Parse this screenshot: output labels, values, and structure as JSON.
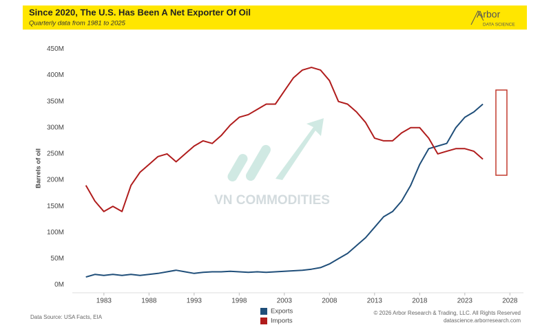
{
  "chart_data": {
    "type": "line",
    "title": "Since 2020, The U.S. Has Been A Net Exporter Of Oil",
    "subtitle": "Quarterly data from 1981 to 2025",
    "logo": "Arbor",
    "logo_sub": "DATA SCIENCE",
    "y_label": "Barrels of oil",
    "source": "Data Source: USA Facts, EIA",
    "copyright": "© 2026 Arbor Research & Trading, LLC. All Rights Reserved",
    "website": "datascience.arborresearch.com",
    "watermark": "VN COMMODITIES",
    "x": [
      1981,
      1982,
      1983,
      1984,
      1985,
      1986,
      1987,
      1988,
      1989,
      1990,
      1991,
      1992,
      1993,
      1994,
      1995,
      1996,
      1997,
      1998,
      1999,
      2000,
      2001,
      2002,
      2003,
      2004,
      2005,
      2006,
      2007,
      2008,
      2009,
      2010,
      2011,
      2012,
      2013,
      2014,
      2015,
      2016,
      2017,
      2018,
      2019,
      2020,
      2021,
      2022,
      2023,
      2024,
      2025
    ],
    "series": [
      {
        "name": "Exports",
        "color": "#1f4e79",
        "values": [
          15,
          20,
          18,
          20,
          18,
          20,
          18,
          20,
          22,
          25,
          28,
          25,
          22,
          24,
          25,
          25,
          26,
          25,
          24,
          25,
          24,
          25,
          26,
          27,
          28,
          30,
          33,
          40,
          50,
          60,
          75,
          90,
          110,
          130,
          140,
          160,
          190,
          230,
          260,
          265,
          270,
          300,
          320,
          330,
          345
        ]
      },
      {
        "name": "Imports",
        "color": "#b01c1c",
        "values": [
          190,
          160,
          140,
          150,
          140,
          190,
          215,
          230,
          245,
          250,
          235,
          250,
          265,
          275,
          270,
          285,
          305,
          320,
          325,
          335,
          345,
          345,
          370,
          395,
          410,
          415,
          410,
          390,
          350,
          345,
          330,
          310,
          280,
          275,
          275,
          290,
          300,
          300,
          280,
          250,
          255,
          260,
          260,
          255,
          240
        ]
      }
    ],
    "xlim": [
      1979.5,
      2029.5
    ],
    "xticks": [
      1983,
      1988,
      1993,
      1998,
      2003,
      2008,
      2013,
      2018,
      2023,
      2028
    ],
    "ylim": [
      -15,
      465
    ],
    "yticks": [
      {
        "value": 0,
        "label": "0M"
      },
      {
        "value": 50,
        "label": "50M"
      },
      {
        "value": 100,
        "label": "100M"
      },
      {
        "value": 150,
        "label": "150M"
      },
      {
        "value": 200,
        "label": "200M"
      },
      {
        "value": 250,
        "label": "250M"
      },
      {
        "value": 300,
        "label": "300M"
      },
      {
        "value": 350,
        "label": "350M"
      },
      {
        "value": 400,
        "label": "400M"
      },
      {
        "value": 450,
        "label": "450M"
      }
    ],
    "grid": false,
    "legend": "bottom"
  }
}
